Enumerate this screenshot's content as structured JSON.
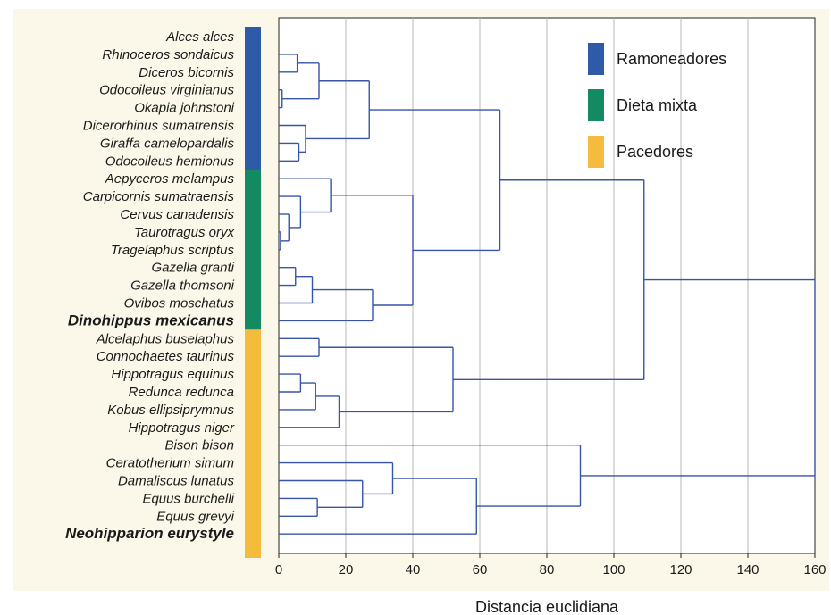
{
  "chart_data": {
    "type": "dendrogram",
    "xlabel": "Distancia euclidiana",
    "xlim": [
      0,
      160
    ],
    "x_ticks": [
      "0",
      "20",
      "40",
      "60",
      "80",
      "100",
      "120",
      "140",
      "160"
    ],
    "grid": true,
    "legend_position": "top-right",
    "taxa": [
      {
        "name": "Alces alces",
        "diet": "browser",
        "bold": false
      },
      {
        "name": "Rhinoceros sondaicus",
        "diet": "browser",
        "bold": false
      },
      {
        "name": "Diceros bicornis",
        "diet": "browser",
        "bold": false
      },
      {
        "name": "Odocoileus virginianus",
        "diet": "browser",
        "bold": false
      },
      {
        "name": "Okapia johnstoni",
        "diet": "browser",
        "bold": false
      },
      {
        "name": "Dicerorhinus sumatrensis",
        "diet": "browser",
        "bold": false
      },
      {
        "name": "Giraffa camelopardalis",
        "diet": "browser",
        "bold": false
      },
      {
        "name": "Odocoileus hemionus",
        "diet": "browser",
        "bold": false
      },
      {
        "name": "Aepyceros melampus",
        "diet": "mixed",
        "bold": false
      },
      {
        "name": "Carpicornis sumatraensis",
        "diet": "mixed",
        "bold": false
      },
      {
        "name": "Cervus canadensis",
        "diet": "mixed",
        "bold": false
      },
      {
        "name": "Taurotragus oryx",
        "diet": "mixed",
        "bold": false
      },
      {
        "name": "Tragelaphus scriptus",
        "diet": "mixed",
        "bold": false
      },
      {
        "name": "Gazella granti",
        "diet": "mixed",
        "bold": false
      },
      {
        "name": "Gazella thomsoni",
        "diet": "mixed",
        "bold": false
      },
      {
        "name": "Ovibos moschatus",
        "diet": "mixed",
        "bold": false
      },
      {
        "name": "Dinohippus mexicanus",
        "diet": "mixed",
        "bold": true
      },
      {
        "name": "Alcelaphus buselaphus",
        "diet": "grazer",
        "bold": false
      },
      {
        "name": "Connochaetes taurinus",
        "diet": "grazer",
        "bold": false
      },
      {
        "name": "Hippotragus equinus",
        "diet": "grazer",
        "bold": false
      },
      {
        "name": "Redunca redunca",
        "diet": "grazer",
        "bold": false
      },
      {
        "name": "Kobus ellipsiprymnus",
        "diet": "grazer",
        "bold": false
      },
      {
        "name": "Hippotragus niger",
        "diet": "grazer",
        "bold": false
      },
      {
        "name": "Bison bison",
        "diet": "grazer",
        "bold": false
      },
      {
        "name": "Ceratotherium simum",
        "diet": "grazer",
        "bold": false
      },
      {
        "name": "Damaliscus lunatus",
        "diet": "grazer",
        "bold": false
      },
      {
        "name": "Equus burchelli",
        "diet": "grazer",
        "bold": false
      },
      {
        "name": "Equus grevyi",
        "diet": "grazer",
        "bold": false
      },
      {
        "name": "Neohipparion eurystyle",
        "diet": "grazer",
        "bold": true
      }
    ],
    "merges": [
      {
        "id": "c1",
        "left": "t3",
        "right": "t4",
        "height": 1
      },
      {
        "id": "c2",
        "left": "t1",
        "right": "t2",
        "height": 5.5
      },
      {
        "id": "c3",
        "left": "c2",
        "right": "c1",
        "height": 12
      },
      {
        "id": "c4",
        "left": "t6",
        "right": "t7",
        "height": 6
      },
      {
        "id": "c5",
        "left": "t5",
        "right": "c4",
        "height": 8
      },
      {
        "id": "c6",
        "left": "c3",
        "right": "c5",
        "height": 27
      },
      {
        "id": "c7",
        "left": "t11",
        "right": "t12",
        "height": 0.5
      },
      {
        "id": "c8",
        "left": "t10",
        "right": "c7",
        "height": 3
      },
      {
        "id": "c9",
        "left": "t9",
        "right": "c8",
        "height": 6.5
      },
      {
        "id": "c10",
        "left": "t8",
        "right": "c9",
        "height": 15.5
      },
      {
        "id": "c11",
        "left": "t13",
        "right": "t14",
        "height": 5
      },
      {
        "id": "c12",
        "left": "c11",
        "right": "t15",
        "height": 10
      },
      {
        "id": "c13",
        "left": "c12",
        "right": "t16",
        "height": 28
      },
      {
        "id": "c14",
        "left": "c10",
        "right": "c13",
        "height": 40
      },
      {
        "id": "c15",
        "left": "c6",
        "right": "c14",
        "height": 66
      },
      {
        "id": "c16",
        "left": "t17",
        "right": "t18",
        "height": 12
      },
      {
        "id": "c17",
        "left": "t19",
        "right": "t20",
        "height": 6.5
      },
      {
        "id": "c18",
        "left": "c17",
        "right": "t21",
        "height": 11
      },
      {
        "id": "c19",
        "left": "c18",
        "right": "t22",
        "height": 18
      },
      {
        "id": "c20",
        "left": "c16",
        "right": "c19",
        "height": 52
      },
      {
        "id": "c21",
        "left": "c15",
        "right": "c20",
        "height": 109
      },
      {
        "id": "c22",
        "left": "t26",
        "right": "t27",
        "height": 11.5
      },
      {
        "id": "c23",
        "left": "t25",
        "right": "c22",
        "height": 25
      },
      {
        "id": "c24",
        "left": "t24",
        "right": "c23",
        "height": 34
      },
      {
        "id": "c25",
        "left": "c24",
        "right": "t28",
        "height": 59
      },
      {
        "id": "c26",
        "left": "t23",
        "right": "c25",
        "height": 90
      },
      {
        "id": "c27",
        "left": "c21",
        "right": "c26",
        "height": 160
      }
    ],
    "legend": [
      {
        "key": "browser",
        "label": "Ramoneadores",
        "color": "#2d5ba8"
      },
      {
        "key": "mixed",
        "label": "Dieta mixta",
        "color": "#138a62"
      },
      {
        "key": "grazer",
        "label": "Pacedores",
        "color": "#f5bb3c"
      }
    ]
  },
  "colors": {
    "background": "#fcf8e9",
    "plot_bg": "#ffffff",
    "line": "#3654a8",
    "grid": "#b8b8b8"
  }
}
